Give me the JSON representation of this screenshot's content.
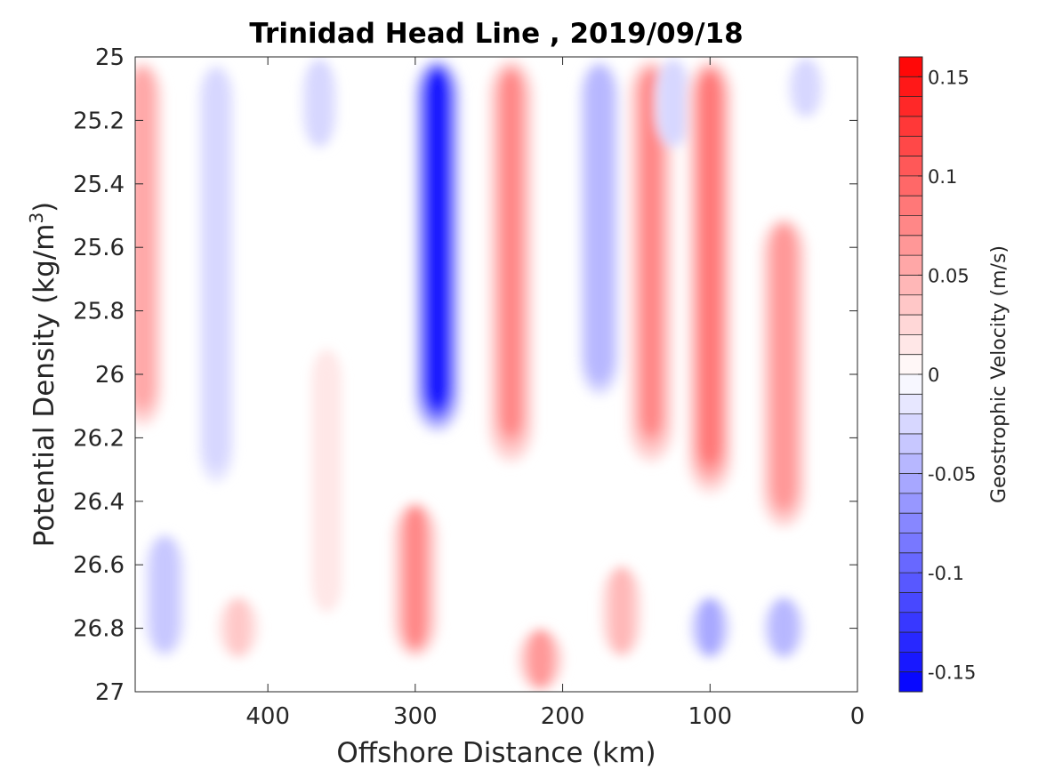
{
  "chart_data": {
    "type": "heatmap",
    "subtype": "filled-contour",
    "title": "Trinidad Head Line , 2019/09/18",
    "xlabel": "Offshore Distance (km)",
    "ylabel": "Potential Density (kg/m3)",
    "ylabel_parts": {
      "base": "Potential Density (kg/m",
      "superscript": "3",
      "close": ")"
    },
    "xlim": [
      490,
      0
    ],
    "x_reversed": true,
    "ylim": [
      25,
      27
    ],
    "y_reversed": true,
    "xticks": [
      400,
      300,
      200,
      100,
      0
    ],
    "xtick_labels": [
      "400",
      "300",
      "200",
      "100",
      "0"
    ],
    "yticks": [
      25,
      25.2,
      25.4,
      25.6,
      25.8,
      26,
      26.2,
      26.4,
      26.6,
      26.8,
      27
    ],
    "ytick_labels": [
      "25",
      "25.2",
      "25.4",
      "25.6",
      "25.8",
      "26",
      "26.2",
      "26.4",
      "26.6",
      "26.8",
      "27"
    ],
    "grid": false,
    "data_extent": {
      "x": [
        490,
        30
      ],
      "y": [
        25,
        26.9
      ]
    },
    "colorbar": {
      "label": "Geostrophic Velocity (m/s)",
      "limits": [
        -0.16,
        0.16
      ],
      "levels": 32,
      "ticks": [
        -0.15,
        -0.1,
        -0.05,
        0,
        0.05,
        0.1,
        0.15
      ],
      "tick_labels": [
        "-0.15",
        "-0.1",
        "-0.05",
        "0",
        "0.05",
        "0.1",
        "0.15"
      ],
      "colormap": "blue-white-red",
      "color_negative": "#0000ff",
      "color_zero": "#ffffff",
      "color_positive": "#ff0000"
    },
    "features": [
      {
        "x": 485,
        "y": [
          25.0,
          26.2
        ],
        "amp": 0.05
      },
      {
        "x": 470,
        "y": [
          26.5,
          26.9
        ],
        "amp": -0.04
      },
      {
        "x": 435,
        "y": [
          25.0,
          26.4
        ],
        "amp": -0.03
      },
      {
        "x": 420,
        "y": [
          26.7,
          26.9
        ],
        "amp": 0.03
      },
      {
        "x": 365,
        "y": [
          25.0,
          25.3
        ],
        "amp": -0.03
      },
      {
        "x": 360,
        "y": [
          25.9,
          26.8
        ],
        "amp": 0.015
      },
      {
        "x": 300,
        "y": [
          26.4,
          26.9
        ],
        "amp": 0.07
      },
      {
        "x": 285,
        "y": [
          25.0,
          26.2
        ],
        "amp": -0.15
      },
      {
        "x": 235,
        "y": [
          25.0,
          26.3
        ],
        "amp": 0.07
      },
      {
        "x": 215,
        "y": [
          26.8,
          27.0
        ],
        "amp": 0.06
      },
      {
        "x": 175,
        "y": [
          25.0,
          26.1
        ],
        "amp": -0.05
      },
      {
        "x": 160,
        "y": [
          26.6,
          26.9
        ],
        "amp": 0.04
      },
      {
        "x": 140,
        "y": [
          25.0,
          26.3
        ],
        "amp": 0.07
      },
      {
        "x": 125,
        "y": [
          25.0,
          25.3
        ],
        "amp": -0.03
      },
      {
        "x": 100,
        "y": [
          25.0,
          26.4
        ],
        "amp": 0.08
      },
      {
        "x": 100,
        "y": [
          26.7,
          26.9
        ],
        "amp": -0.06
      },
      {
        "x": 50,
        "y": [
          25.5,
          26.5
        ],
        "amp": 0.06
      },
      {
        "x": 35,
        "y": [
          25.0,
          25.2
        ],
        "amp": -0.03
      },
      {
        "x": 50,
        "y": [
          26.7,
          26.9
        ],
        "amp": -0.05
      }
    ]
  }
}
